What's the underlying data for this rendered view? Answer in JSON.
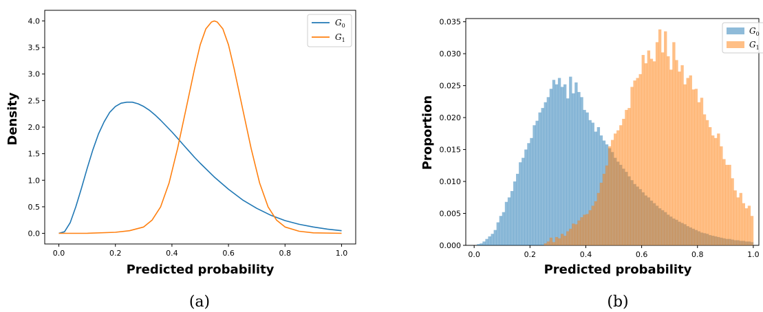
{
  "captions": {
    "a": "(a)",
    "b": "(b)"
  },
  "chart_data": [
    {
      "type": "line",
      "xlabel": "Predicted probability",
      "ylabel": "Density",
      "xlim": [
        -0.05,
        1.05
      ],
      "ylim": [
        -0.2,
        4.2
      ],
      "xticks": [
        "0.0",
        "0.2",
        "0.4",
        "0.6",
        "0.8",
        "1.0"
      ],
      "yticks": [
        "0.0",
        "0.5",
        "1.0",
        "1.5",
        "2.0",
        "2.5",
        "3.0",
        "3.5",
        "4.0"
      ],
      "legend": {
        "position": "top-right"
      },
      "grid": false,
      "series": [
        {
          "name": "G0",
          "name_main": "G",
          "name_sub": "0",
          "color": "#1f77b4",
          "x": [
            0.0,
            0.02,
            0.04,
            0.06,
            0.08,
            0.1,
            0.12,
            0.14,
            0.16,
            0.18,
            0.2,
            0.22,
            0.24,
            0.26,
            0.28,
            0.3,
            0.32,
            0.34,
            0.36,
            0.38,
            0.4,
            0.42,
            0.44,
            0.46,
            0.48,
            0.5,
            0.55,
            0.6,
            0.65,
            0.7,
            0.75,
            0.8,
            0.85,
            0.9,
            0.95,
            1.0
          ],
          "y": [
            0.0,
            0.03,
            0.2,
            0.5,
            0.85,
            1.22,
            1.57,
            1.87,
            2.1,
            2.28,
            2.39,
            2.45,
            2.47,
            2.47,
            2.44,
            2.39,
            2.32,
            2.23,
            2.13,
            2.02,
            1.91,
            1.79,
            1.67,
            1.55,
            1.43,
            1.32,
            1.06,
            0.83,
            0.63,
            0.47,
            0.34,
            0.24,
            0.17,
            0.12,
            0.08,
            0.05
          ]
        },
        {
          "name": "G1",
          "name_main": "G",
          "name_sub": "1",
          "color": "#ff7f0e",
          "x": [
            0.0,
            0.1,
            0.2,
            0.25,
            0.3,
            0.33,
            0.36,
            0.39,
            0.42,
            0.45,
            0.48,
            0.5,
            0.52,
            0.54,
            0.55,
            0.56,
            0.58,
            0.6,
            0.62,
            0.65,
            0.68,
            0.71,
            0.74,
            0.77,
            0.8,
            0.85,
            0.9,
            1.0
          ],
          "y": [
            0.0,
            0.0,
            0.02,
            0.05,
            0.12,
            0.25,
            0.5,
            0.95,
            1.6,
            2.35,
            3.1,
            3.55,
            3.85,
            3.98,
            4.0,
            3.98,
            3.85,
            3.55,
            3.1,
            2.35,
            1.6,
            0.95,
            0.5,
            0.25,
            0.12,
            0.04,
            0.01,
            0.0
          ]
        }
      ]
    },
    {
      "type": "bar",
      "subtype": "histogram",
      "xlabel": "Predicted probability",
      "ylabel": "Proportion",
      "xlim": [
        -0.03,
        1.02
      ],
      "ylim": [
        0.0,
        0.0355
      ],
      "xticks": [
        "0.0",
        "0.2",
        "0.4",
        "0.6",
        "0.8",
        "1.0"
      ],
      "yticks": [
        "0.000",
        "0.005",
        "0.010",
        "0.015",
        "0.020",
        "0.025",
        "0.030",
        "0.035"
      ],
      "legend": {
        "position": "top-right"
      },
      "grid": false,
      "bin_range": [
        0.0,
        1.0
      ],
      "bin_count": 100,
      "series": [
        {
          "name": "G0",
          "name_main": "G",
          "name_sub": "0",
          "color": "#1f77b4",
          "alpha": 0.5,
          "values": [
            0.0,
            0.0002,
            0.0003,
            0.0006,
            0.001,
            0.0014,
            0.0018,
            0.0024,
            0.0036,
            0.0046,
            0.0052,
            0.0068,
            0.0075,
            0.0085,
            0.01,
            0.0112,
            0.013,
            0.0137,
            0.015,
            0.016,
            0.0168,
            0.0188,
            0.0195,
            0.0208,
            0.0215,
            0.0224,
            0.0232,
            0.0245,
            0.0259,
            0.0252,
            0.0262,
            0.0248,
            0.0252,
            0.023,
            0.0264,
            0.0238,
            0.0255,
            0.024,
            0.0232,
            0.0212,
            0.0208,
            0.0196,
            0.0192,
            0.0178,
            0.0185,
            0.0172,
            0.0164,
            0.0158,
            0.0152,
            0.0146,
            0.0137,
            0.0131,
            0.0126,
            0.012,
            0.0115,
            0.0108,
            0.0102,
            0.0096,
            0.0092,
            0.0088,
            0.0083,
            0.0078,
            0.0075,
            0.007,
            0.0066,
            0.0062,
            0.0058,
            0.0055,
            0.0052,
            0.0048,
            0.0045,
            0.0042,
            0.004,
            0.0037,
            0.0035,
            0.0033,
            0.003,
            0.0028,
            0.0026,
            0.0024,
            0.0022,
            0.002,
            0.0019,
            0.0018,
            0.0016,
            0.0015,
            0.0014,
            0.0013,
            0.0012,
            0.0011,
            0.001,
            0.001,
            0.0009,
            0.0008,
            0.0008,
            0.0007,
            0.0007,
            0.0006,
            0.0006,
            0.0005
          ]
        },
        {
          "name": "G1",
          "name_main": "G",
          "name_sub": "1",
          "color": "#ff7f0e",
          "alpha": 0.5,
          "values": [
            0.0,
            0.0,
            0.0,
            0.0,
            0.0,
            0.0,
            0.0,
            0.0,
            0.0,
            0.0,
            0.0,
            0.0,
            0.0,
            0.0,
            0.0,
            0.0,
            0.0,
            0.0,
            0.0,
            0.0,
            0.0,
            0.0,
            0.0,
            0.0,
            0.0,
            0.0003,
            0.0006,
            0.0012,
            0.0005,
            0.0013,
            0.0011,
            0.0018,
            0.0015,
            0.0022,
            0.0026,
            0.0034,
            0.0033,
            0.0039,
            0.0044,
            0.0048,
            0.0049,
            0.0055,
            0.0062,
            0.0069,
            0.0082,
            0.0098,
            0.0112,
            0.0125,
            0.0155,
            0.0165,
            0.0175,
            0.018,
            0.0188,
            0.0198,
            0.0212,
            0.0215,
            0.0248,
            0.0258,
            0.0262,
            0.0268,
            0.0298,
            0.0285,
            0.0305,
            0.0292,
            0.0288,
            0.0318,
            0.0338,
            0.0302,
            0.0335,
            0.0296,
            0.0275,
            0.0318,
            0.029,
            0.0272,
            0.0282,
            0.0252,
            0.0262,
            0.0266,
            0.0244,
            0.0245,
            0.0224,
            0.0231,
            0.0205,
            0.0196,
            0.0185,
            0.0172,
            0.0168,
            0.0175,
            0.0155,
            0.0135,
            0.0126,
            0.0126,
            0.0105,
            0.0086,
            0.0075,
            0.0082,
            0.0066,
            0.0058,
            0.0062,
            0.0046
          ]
        }
      ]
    }
  ]
}
